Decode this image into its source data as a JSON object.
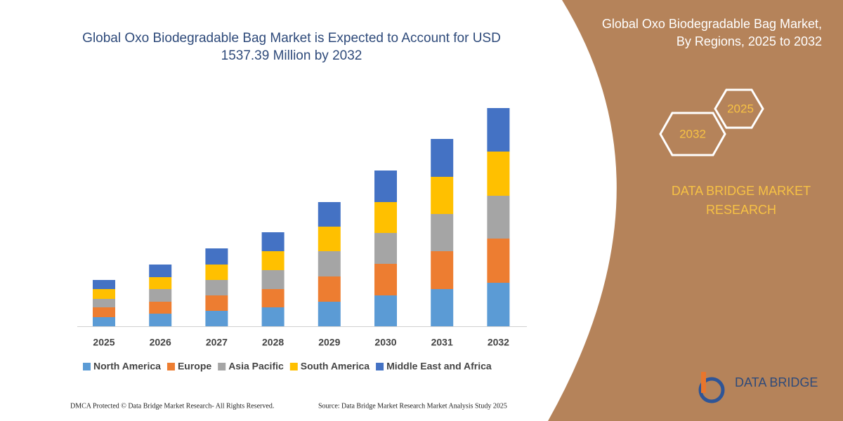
{
  "chart_data": {
    "type": "bar",
    "stacked": true,
    "title": "Global Oxo Biodegradable Bag Market is Expected to Account for USD 1537.39 Million by 2032",
    "categories": [
      "2025",
      "2026",
      "2027",
      "2028",
      "2029",
      "2030",
      "2031",
      "2032"
    ],
    "series": [
      {
        "name": "North America",
        "color": "#5b9bd5",
        "values": [
          13,
          18,
          22,
          27,
          35,
          44,
          53,
          62
        ]
      },
      {
        "name": "Europe",
        "color": "#ed7d31",
        "values": [
          14,
          17,
          22,
          26,
          36,
          45,
          54,
          63
        ]
      },
      {
        "name": "Asia Pacific",
        "color": "#a5a5a5",
        "values": [
          12,
          18,
          22,
          27,
          36,
          44,
          53,
          61
        ]
      },
      {
        "name": "South America",
        "color": "#ffc000",
        "values": [
          14,
          17,
          22,
          27,
          35,
          44,
          53,
          63
        ]
      },
      {
        "name": "Middle East and Africa",
        "color": "#4472c4",
        "values": [
          13,
          18,
          23,
          27,
          35,
          45,
          54,
          62
        ]
      }
    ]
  },
  "panel": {
    "title": "Global Oxo Biodegradable Bag Market, By Regions, 2025 to 2032",
    "hexagons": [
      "2025",
      "2032"
    ],
    "brand": "DATA BRIDGE MARKET RESEARCH",
    "logo": "DATA BRIDGE"
  },
  "footer": {
    "copyright": "DMCA Protected © Data Bridge Market Research- All Rights Reserved.",
    "source": "Source: Data Bridge Market Research  Market Analysis Study 2025"
  }
}
